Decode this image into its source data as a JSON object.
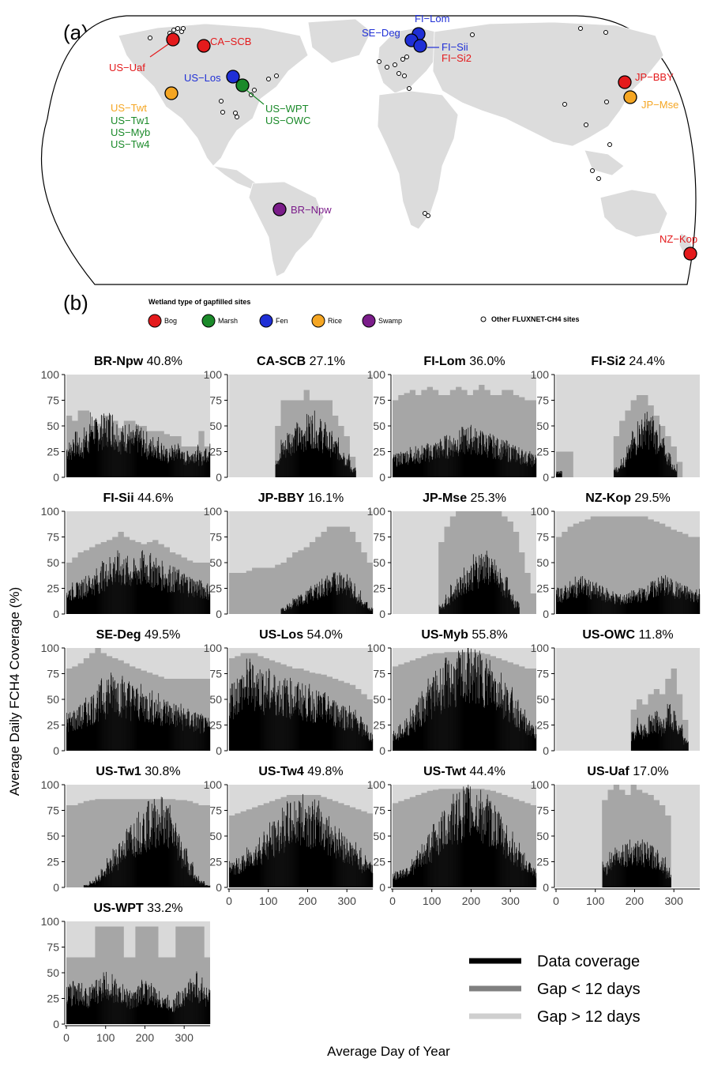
{
  "figure": {
    "panel_a_label": "(a)",
    "panel_b_label": "(b)",
    "legend_title": "Wetland type of gapfilled sites",
    "wetland_types": [
      {
        "name": "Bog",
        "color": "#e41a1c"
      },
      {
        "name": "Marsh",
        "color": "#1b8a2a"
      },
      {
        "name": "Fen",
        "color": "#1f2fd6"
      },
      {
        "name": "Rice",
        "color": "#f5a623"
      },
      {
        "name": "Swamp",
        "color": "#7b1d8a"
      }
    ],
    "other_sites_label": "Other FLUXNET-CH4 sites",
    "site_labels": {
      "US-Uaf": "US−Uaf",
      "CA-SCB": "CA−SCB",
      "US-Los": "US−Los",
      "US-Twt": "US−Twt",
      "US-Tw1": "US−Tw1",
      "US-Myb": "US−Myb",
      "US-Tw4": "US−Tw4",
      "US-WPT": "US−WPT",
      "US-OWC": "US−OWC",
      "BR-Npw": "BR−Npw",
      "SE-Deg": "SE−Deg",
      "FI-Lom": "FI−Lom",
      "FI-Sii": "FI−Sii",
      "FI-Si2": "FI−Si2",
      "JP-BBY": "JP−BBY",
      "JP-Mse": "JP−Mse",
      "NZ-Kop": "NZ−Kop"
    },
    "y_axis_label": "Average Daily FCH4 Coverage (%)",
    "x_axis_label": "Average Day of Year",
    "legend_series": [
      "Data coverage",
      "Gap < 12 days",
      "Gap > 12 days"
    ],
    "series_colors": {
      "data": "#000000",
      "gap_short": "#a6a6a6",
      "gap_long": "#d9d9d9"
    }
  },
  "chart_data": {
    "type": "area",
    "y_ticks": [
      "0",
      "25",
      "50",
      "75",
      "100"
    ],
    "x_ticks": [
      "0",
      "100",
      "200",
      "300"
    ],
    "ylim": [
      0,
      100
    ],
    "xlim": [
      0,
      366
    ],
    "panels": [
      {
        "site": "BR-Npw",
        "coverage": "40.8%",
        "data_level": [
          28,
          35,
          30,
          40,
          50,
          45,
          48,
          52,
          45,
          40,
          42,
          36,
          40,
          35,
          30,
          32,
          28,
          22,
          25,
          28,
          20,
          22,
          25,
          20,
          26
        ],
        "gap_level": [
          60,
          55,
          65,
          65,
          50,
          52,
          60,
          60,
          55,
          48,
          55,
          55,
          50,
          50,
          45,
          45,
          45,
          42,
          40,
          40,
          30,
          30,
          30,
          45,
          30
        ],
        "active": [
          0,
          366
        ]
      },
      {
        "site": "CA-SCB",
        "coverage": "27.1%",
        "data_level": [
          0,
          0,
          0,
          0,
          0,
          0,
          0,
          0,
          20,
          30,
          38,
          42,
          40,
          48,
          50,
          45,
          42,
          35,
          30,
          26,
          18,
          8,
          0,
          0,
          0
        ],
        "gap_level": [
          0,
          0,
          0,
          0,
          0,
          0,
          0,
          0,
          50,
          75,
          75,
          75,
          75,
          85,
          75,
          75,
          75,
          75,
          60,
          50,
          40,
          20,
          0,
          0,
          0
        ],
        "active": [
          100,
          340
        ]
      },
      {
        "site": "FI-Lom",
        "coverage": "36.0%",
        "data_level": [
          18,
          20,
          22,
          24,
          22,
          25,
          26,
          28,
          30,
          32,
          34,
          36,
          38,
          40,
          38,
          36,
          34,
          32,
          30,
          28,
          26,
          24,
          22,
          20,
          18
        ],
        "gap_level": [
          75,
          80,
          82,
          85,
          80,
          85,
          88,
          85,
          80,
          80,
          85,
          88,
          85,
          80,
          85,
          90,
          85,
          80,
          80,
          85,
          85,
          80,
          78,
          75,
          75
        ],
        "active": [
          0,
          366
        ]
      },
      {
        "site": "FI-Si2",
        "coverage": "24.4%",
        "data_level": [
          5,
          0,
          0,
          0,
          0,
          0,
          0,
          0,
          0,
          0,
          8,
          15,
          25,
          35,
          45,
          50,
          48,
          40,
          30,
          20,
          10,
          0,
          0,
          0,
          0
        ],
        "gap_level": [
          25,
          25,
          25,
          0,
          0,
          0,
          0,
          0,
          0,
          0,
          40,
          55,
          65,
          75,
          80,
          80,
          70,
          60,
          50,
          40,
          30,
          15,
          0,
          0,
          0
        ],
        "active": [
          0,
          300
        ]
      },
      {
        "site": "FI-Sii",
        "coverage": "44.6%",
        "data_level": [
          22,
          24,
          26,
          30,
          32,
          35,
          40,
          45,
          48,
          46,
          44,
          42,
          45,
          48,
          46,
          44,
          40,
          38,
          36,
          34,
          32,
          30,
          28,
          26,
          24
        ],
        "gap_level": [
          50,
          55,
          60,
          62,
          65,
          68,
          70,
          72,
          75,
          80,
          75,
          72,
          70,
          68,
          70,
          72,
          68,
          65,
          60,
          58,
          55,
          52,
          50,
          50,
          50
        ],
        "active": [
          0,
          366
        ]
      },
      {
        "site": "JP-BBY",
        "coverage": "16.1%",
        "data_level": [
          0,
          0,
          0,
          0,
          0,
          0,
          0,
          0,
          0,
          5,
          8,
          12,
          15,
          18,
          22,
          25,
          28,
          30,
          32,
          35,
          30,
          25,
          18,
          10,
          5
        ],
        "gap_level": [
          40,
          40,
          40,
          42,
          45,
          45,
          45,
          45,
          48,
          50,
          55,
          60,
          62,
          65,
          70,
          75,
          80,
          85,
          85,
          85,
          85,
          80,
          70,
          60,
          50
        ],
        "active": [
          0,
          366
        ]
      },
      {
        "site": "JP-Mse",
        "coverage": "25.3%",
        "data_level": [
          0,
          0,
          0,
          0,
          0,
          0,
          0,
          0,
          8,
          15,
          22,
          28,
          35,
          40,
          45,
          50,
          48,
          42,
          35,
          28,
          20,
          10,
          0,
          0,
          0
        ],
        "gap_level": [
          0,
          0,
          0,
          0,
          0,
          0,
          0,
          0,
          70,
          85,
          95,
          100,
          100,
          100,
          100,
          100,
          100,
          100,
          100,
          95,
          90,
          80,
          60,
          40,
          20
        ],
        "active": [
          0,
          366
        ]
      },
      {
        "site": "NZ-Kop",
        "coverage": "29.5%",
        "data_level": [
          20,
          22,
          25,
          28,
          30,
          26,
          24,
          22,
          20,
          18,
          16,
          15,
          16,
          18,
          20,
          22,
          25,
          28,
          30,
          28,
          26,
          24,
          22,
          20,
          20
        ],
        "gap_level": [
          75,
          80,
          85,
          88,
          90,
          92,
          95,
          95,
          95,
          95,
          95,
          95,
          95,
          95,
          95,
          95,
          92,
          90,
          88,
          85,
          82,
          80,
          78,
          75,
          75
        ],
        "active": [
          0,
          366
        ]
      },
      {
        "site": "SE-Deg",
        "coverage": "49.5%",
        "data_level": [
          30,
          32,
          35,
          40,
          45,
          50,
          55,
          60,
          62,
          58,
          55,
          52,
          50,
          48,
          46,
          44,
          42,
          40,
          38,
          36,
          34,
          32,
          30,
          28,
          25
        ],
        "gap_level": [
          80,
          82,
          85,
          90,
          95,
          100,
          95,
          92,
          90,
          88,
          85,
          82,
          80,
          78,
          76,
          74,
          72,
          70,
          70,
          70,
          70,
          70,
          70,
          70,
          70
        ],
        "active": [
          0,
          366
        ]
      },
      {
        "site": "US-Los",
        "coverage": "54.0%",
        "data_level": [
          55,
          60,
          65,
          70,
          68,
          65,
          62,
          60,
          58,
          56,
          55,
          54,
          52,
          50,
          48,
          46,
          44,
          42,
          40,
          38,
          35,
          32,
          28,
          22,
          15
        ],
        "gap_level": [
          90,
          92,
          95,
          95,
          95,
          92,
          90,
          88,
          86,
          84,
          82,
          80,
          80,
          78,
          76,
          75,
          74,
          72,
          70,
          68,
          66,
          64,
          60,
          55,
          50
        ],
        "active": [
          0,
          366
        ]
      },
      {
        "site": "US-Myb",
        "coverage": "55.8%",
        "data_level": [
          15,
          20,
          25,
          32,
          40,
          48,
          55,
          60,
          65,
          70,
          72,
          75,
          78,
          80,
          78,
          75,
          72,
          68,
          62,
          55,
          48,
          40,
          32,
          25,
          20
        ],
        "gap_level": [
          82,
          84,
          86,
          88,
          90,
          92,
          94,
          95,
          95,
          96,
          96,
          96,
          96,
          96,
          96,
          95,
          94,
          92,
          90,
          88,
          86,
          84,
          82,
          80,
          80
        ],
        "active": [
          0,
          366
        ]
      },
      {
        "site": "US-OWC",
        "coverage": "11.8%",
        "data_level": [
          0,
          0,
          0,
          0,
          0,
          0,
          0,
          0,
          0,
          0,
          0,
          0,
          0,
          15,
          25,
          20,
          28,
          30,
          25,
          35,
          30,
          20,
          10,
          0,
          0
        ],
        "gap_level": [
          0,
          0,
          0,
          0,
          0,
          0,
          0,
          0,
          0,
          0,
          0,
          0,
          0,
          40,
          50,
          45,
          55,
          60,
          55,
          70,
          80,
          55,
          30,
          0,
          0
        ],
        "active": [
          0,
          366
        ]
      },
      {
        "site": "US-Tw1",
        "coverage": "30.8%",
        "data_level": [
          0,
          0,
          0,
          2,
          5,
          10,
          15,
          22,
          30,
          38,
          45,
          52,
          58,
          62,
          65,
          68,
          70,
          65,
          55,
          45,
          32,
          20,
          10,
          5,
          2
        ],
        "gap_level": [
          80,
          80,
          82,
          84,
          85,
          86,
          86,
          86,
          86,
          86,
          86,
          86,
          86,
          86,
          86,
          86,
          86,
          86,
          86,
          85,
          85,
          84,
          82,
          80,
          80
        ],
        "active": [
          0,
          366
        ]
      },
      {
        "site": "US-Tw4",
        "coverage": "49.8%",
        "data_level": [
          20,
          22,
          25,
          30,
          35,
          40,
          45,
          50,
          55,
          60,
          65,
          68,
          70,
          70,
          68,
          65,
          60,
          55,
          50,
          45,
          40,
          35,
          30,
          25,
          22
        ],
        "gap_level": [
          70,
          72,
          74,
          76,
          78,
          80,
          82,
          84,
          86,
          88,
          90,
          90,
          90,
          90,
          90,
          90,
          88,
          86,
          84,
          82,
          80,
          78,
          76,
          74,
          72
        ],
        "active": [
          0,
          366
        ]
      },
      {
        "site": "US-Twt",
        "coverage": "44.4%",
        "data_level": [
          12,
          15,
          18,
          22,
          28,
          35,
          42,
          50,
          58,
          65,
          70,
          75,
          78,
          80,
          78,
          75,
          70,
          65,
          58,
          50,
          42,
          35,
          28,
          20,
          15
        ],
        "gap_level": [
          82,
          84,
          86,
          88,
          90,
          92,
          94,
          95,
          96,
          96,
          96,
          96,
          96,
          96,
          96,
          96,
          95,
          94,
          92,
          90,
          88,
          86,
          84,
          82,
          80
        ],
        "active": [
          0,
          366
        ]
      },
      {
        "site": "US-Uaf",
        "coverage": "17.0%",
        "data_level": [
          0,
          0,
          0,
          0,
          0,
          0,
          0,
          0,
          20,
          28,
          32,
          35,
          36,
          38,
          36,
          34,
          32,
          30,
          25,
          15,
          0,
          0,
          0,
          0,
          0
        ],
        "gap_level": [
          0,
          0,
          0,
          0,
          0,
          0,
          0,
          0,
          85,
          95,
          100,
          95,
          90,
          100,
          95,
          92,
          90,
          85,
          80,
          70,
          0,
          0,
          0,
          0,
          0
        ],
        "active": [
          0,
          366
        ]
      },
      {
        "site": "US-WPT",
        "coverage": "33.2%",
        "data_level": [
          30,
          35,
          32,
          28,
          30,
          35,
          40,
          38,
          35,
          30,
          28,
          25,
          30,
          35,
          32,
          28,
          25,
          22,
          20,
          25,
          30,
          35,
          40,
          35,
          30
        ],
        "gap_level": [
          65,
          65,
          65,
          65,
          65,
          95,
          95,
          95,
          95,
          95,
          65,
          65,
          95,
          95,
          95,
          95,
          65,
          65,
          65,
          95,
          95,
          95,
          95,
          95,
          65
        ],
        "active": [
          0,
          366
        ]
      }
    ]
  }
}
